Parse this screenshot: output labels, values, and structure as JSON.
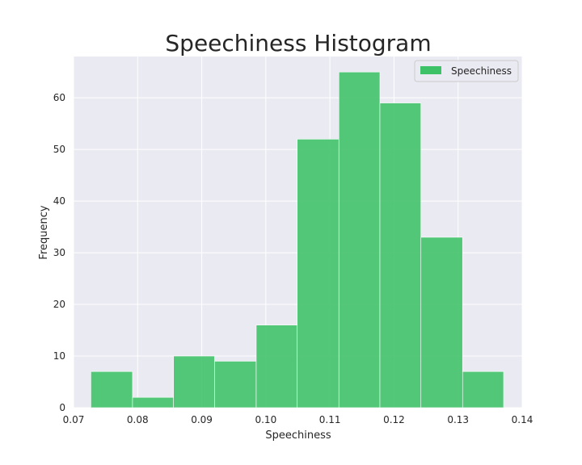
{
  "chart_data": {
    "type": "bar",
    "title": "Speechiness Histogram",
    "xlabel": "Speechiness",
    "ylabel": "Frequency",
    "xlim": [
      0.07,
      0.14
    ],
    "ylim": [
      0,
      68
    ],
    "xticks": [
      0.07,
      0.08,
      0.09,
      0.1,
      0.11,
      0.12,
      0.13,
      0.14
    ],
    "xtick_labels": [
      "0.07",
      "0.08",
      "0.09",
      "0.10",
      "0.11",
      "0.12",
      "0.13",
      "0.14"
    ],
    "yticks": [
      0,
      10,
      20,
      30,
      40,
      50,
      60
    ],
    "ytick_labels": [
      "0",
      "10",
      "20",
      "30",
      "40",
      "50",
      "60"
    ],
    "grid": true,
    "legend_position": "top-right",
    "series": [
      {
        "name": "Speechiness",
        "color": "#3dc267",
        "bins": [
          {
            "x0": 0.0727,
            "x1": 0.0792,
            "count": 7
          },
          {
            "x0": 0.0792,
            "x1": 0.0856,
            "count": 2
          },
          {
            "x0": 0.0856,
            "x1": 0.092,
            "count": 10
          },
          {
            "x0": 0.092,
            "x1": 0.0985,
            "count": 9
          },
          {
            "x0": 0.0985,
            "x1": 0.1049,
            "count": 16
          },
          {
            "x0": 0.1049,
            "x1": 0.1114,
            "count": 52
          },
          {
            "x0": 0.1114,
            "x1": 0.1178,
            "count": 65
          },
          {
            "x0": 0.1178,
            "x1": 0.1242,
            "count": 59
          },
          {
            "x0": 0.1242,
            "x1": 0.1307,
            "count": 33
          },
          {
            "x0": 0.1307,
            "x1": 0.1371,
            "count": 7
          }
        ]
      }
    ]
  }
}
